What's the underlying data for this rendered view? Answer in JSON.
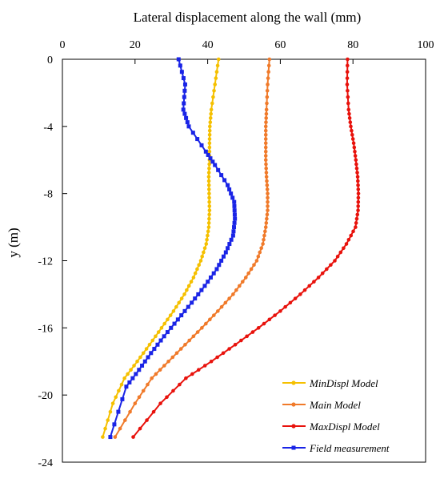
{
  "chart_data": {
    "type": "line",
    "xlabel": "Lateral displacement along the wall (mm)",
    "ylabel": "y (m)",
    "xlim": [
      0,
      100
    ],
    "ylim": [
      -24,
      0
    ],
    "x_axis_position": "top",
    "x_ticks": [
      0,
      20,
      40,
      60,
      80,
      100
    ],
    "y_ticks": [
      0,
      -4,
      -8,
      -12,
      -16,
      -20,
      -24
    ],
    "grid": false,
    "legend_position": "bottom-right",
    "series": [
      {
        "name": "MinDispl Model",
        "color": "#f5c000",
        "marker": "circle",
        "x": [
          43.0,
          42.0,
          41.0,
          40.6,
          40.5,
          40.5,
          40.3,
          40.4,
          40.5,
          40.3,
          39.6,
          38.1,
          36.1,
          33.6,
          30.6,
          27.3,
          24.0,
          20.6,
          17.1,
          13.9,
          11.1
        ],
        "y": [
          0,
          -1.5,
          -3,
          -4,
          -5,
          -6,
          -7,
          -8,
          -9,
          -10,
          -11,
          -12,
          -13,
          -14,
          -15,
          -16,
          -17,
          -18,
          -19,
          -20.5,
          -22.5
        ]
      },
      {
        "name": "Main Model",
        "color": "#f07a2a",
        "marker": "circle",
        "x": [
          57.0,
          56.5,
          56.2,
          56.0,
          56.0,
          56.0,
          56.2,
          56.5,
          56.5,
          56.0,
          55.2,
          53.5,
          50.5,
          47.0,
          42.8,
          38.4,
          33.8,
          29.2,
          24.6,
          20.0,
          14.5
        ],
        "y": [
          0,
          -1.5,
          -3,
          -4,
          -5,
          -6,
          -7,
          -8,
          -9,
          -10,
          -11,
          -12,
          -13,
          -14,
          -15,
          -16,
          -17,
          -18,
          -19,
          -20.5,
          -22.5
        ]
      },
      {
        "name": "MaxDispl Model",
        "color": "#e8120c",
        "marker": "circle",
        "x": [
          78.5,
          78.4,
          78.8,
          79.4,
          80.2,
          80.8,
          81.3,
          81.5,
          81.4,
          80.7,
          78.2,
          75.0,
          70.5,
          65.5,
          60.0,
          54.0,
          47.6,
          41.0,
          34.0,
          27.0,
          19.5
        ],
        "y": [
          0,
          -1.5,
          -3,
          -4,
          -5,
          -6,
          -7,
          -8,
          -9,
          -10,
          -11,
          -12,
          -13,
          -14,
          -15,
          -16,
          -17,
          -18,
          -19,
          -20.5,
          -22.5
        ]
      },
      {
        "name": "Field measurement",
        "color": "#1a24e6",
        "marker": "square",
        "x": [
          32.0,
          33.8,
          33.3,
          34.8,
          39.5,
          42.0,
          45.5,
          47.3,
          47.5,
          47.0,
          45.0,
          42.5,
          39.2,
          35.6,
          31.8,
          28.0,
          24.4,
          21.1,
          17.6,
          13.2
        ],
        "y": [
          0,
          -1.5,
          -3,
          -4,
          -5.5,
          -6.3,
          -7.5,
          -8.5,
          -9.5,
          -10.5,
          -11.5,
          -12.5,
          -13.5,
          -14.5,
          -15.5,
          -16.5,
          -17.5,
          -18.5,
          -19.5,
          -22.5
        ]
      }
    ]
  }
}
